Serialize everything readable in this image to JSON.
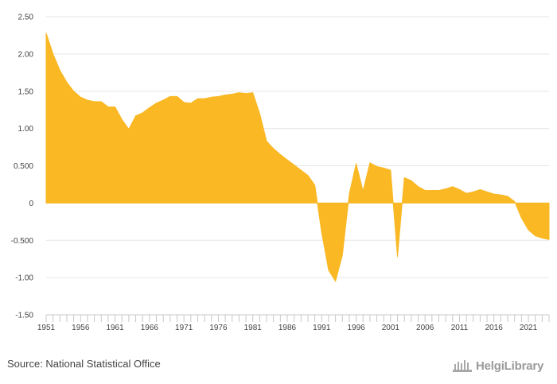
{
  "chart_data": {
    "type": "area",
    "title": "",
    "xlabel": "",
    "ylabel": "",
    "ylim": [
      -1.5,
      2.5
    ],
    "xlim": [
      1951,
      2024
    ],
    "yticks": [
      2.5,
      2.0,
      1.5,
      1.0,
      0.5,
      0,
      -0.5,
      -1.0,
      -1.5
    ],
    "ytick_labels": [
      "2.50",
      "2.00",
      "1.50",
      "1.00",
      "0.500",
      "0",
      "-0.500",
      "-1.00",
      "-1.50"
    ],
    "xtick_labels": [
      "1951",
      "1956",
      "1961",
      "1966",
      "1971",
      "1976",
      "1981",
      "1986",
      "1991",
      "1996",
      "2001",
      "2006",
      "2011",
      "2016",
      "2021"
    ],
    "xtick_years": [
      1951,
      1956,
      1961,
      1966,
      1971,
      1976,
      1981,
      1986,
      1991,
      1996,
      2001,
      2006,
      2011,
      2016,
      2021
    ],
    "fill_color": "#f9b824",
    "grid": true,
    "x": [
      1951,
      1952,
      1953,
      1954,
      1955,
      1956,
      1957,
      1958,
      1959,
      1960,
      1961,
      1962,
      1963,
      1964,
      1965,
      1966,
      1967,
      1968,
      1969,
      1970,
      1971,
      1972,
      1973,
      1974,
      1975,
      1976,
      1977,
      1978,
      1979,
      1980,
      1981,
      1982,
      1983,
      1984,
      1985,
      1986,
      1987,
      1988,
      1989,
      1990,
      1991,
      1992,
      1993,
      1994,
      1995,
      1996,
      1997,
      1998,
      1999,
      2000,
      2001,
      2002,
      2003,
      2004,
      2005,
      2006,
      2007,
      2008,
      2009,
      2010,
      2011,
      2012,
      2013,
      2014,
      2015,
      2016,
      2017,
      2018,
      2019,
      2020,
      2021,
      2022,
      2023,
      2024
    ],
    "values": [
      2.28,
      2.0,
      1.78,
      1.62,
      1.5,
      1.42,
      1.38,
      1.36,
      1.36,
      1.29,
      1.29,
      1.12,
      0.99,
      1.17,
      1.21,
      1.28,
      1.34,
      1.38,
      1.43,
      1.43,
      1.35,
      1.34,
      1.4,
      1.4,
      1.42,
      1.43,
      1.45,
      1.46,
      1.48,
      1.47,
      1.48,
      1.2,
      0.83,
      0.73,
      0.65,
      0.58,
      0.51,
      0.44,
      0.37,
      0.24,
      -0.4,
      -0.9,
      -1.05,
      -0.7,
      0.12,
      0.53,
      0.16,
      0.54,
      0.49,
      0.47,
      0.44,
      -0.72,
      0.34,
      0.3,
      0.22,
      0.17,
      0.17,
      0.17,
      0.19,
      0.22,
      0.18,
      0.13,
      0.15,
      0.18,
      0.15,
      0.12,
      0.11,
      0.09,
      0.02,
      -0.2,
      -0.36,
      -0.44,
      -0.47,
      -0.49
    ]
  },
  "footer": {
    "source": "Source: National Statistical Office",
    "logo_text": "HelgiLibrary"
  }
}
